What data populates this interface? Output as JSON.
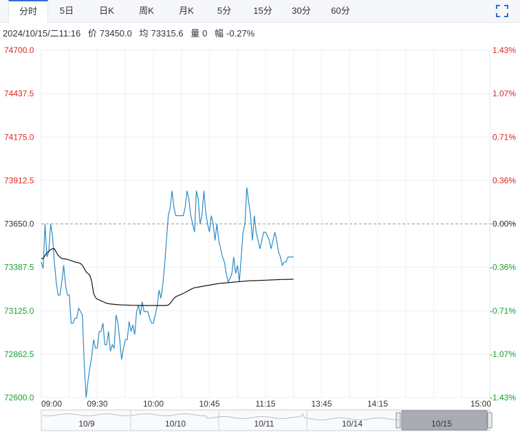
{
  "tabs": [
    "分时",
    "5日",
    "日K",
    "周K",
    "月K",
    "5分",
    "15分",
    "30分",
    "60分"
  ],
  "active_tab": 0,
  "info": {
    "datetime": "2024/10/15/二11:16",
    "price_label": "价",
    "price": "73450.0",
    "avg_label": "均",
    "avg": "73315.6",
    "vol_label": "量",
    "vol": "0",
    "range_label": "幅",
    "range": "-0.27%"
  },
  "colors": {
    "up": "#e0261c",
    "down": "#1a9e2c",
    "price_line": "#2b8ac6",
    "avg_line": "#111111",
    "grid": "#eceff3"
  },
  "chart_data": {
    "type": "line",
    "ylim": [
      72600.0,
      74700.0
    ],
    "prev_close": 73650.0,
    "y_ticks_left": [
      "74700.0",
      "74437.5",
      "74175.0",
      "73912.5",
      "73650.0",
      "73387.5",
      "73125.0",
      "72862.5",
      "72600.0"
    ],
    "y_ticks_right": [
      "1.43%",
      "1.07%",
      "0.71%",
      "0.36%",
      "0.00%",
      "-0.36%",
      "-0.71%",
      "-1.07%",
      "-1.43%"
    ],
    "x_ticks": [
      "09:00",
      "09:30",
      "10:00",
      "10:45",
      "11:15",
      "13:45",
      "14:15",
      "15:00"
    ],
    "total_minutes": 240,
    "series": [
      {
        "values": [
          73420,
          73380,
          73650,
          73450,
          73480,
          73650,
          73580,
          73420,
          73300,
          73220,
          73220,
          73300,
          73400,
          73280,
          73220,
          73220,
          73050,
          73050,
          73080,
          73080,
          73140,
          73120,
          73100,
          72800,
          72600,
          72700,
          72780,
          72850,
          72950,
          72900,
          72900,
          73000,
          73000,
          73050,
          72920,
          72920,
          73000,
          72880,
          72920,
          72900,
          73100,
          73050,
          72950,
          72830,
          72900,
          72950,
          72950,
          73060,
          73000,
          73040,
          72980,
          73120,
          73160,
          73100,
          73180,
          73120,
          73120,
          73120,
          73080,
          73050,
          73050,
          73100,
          73150,
          73250,
          73200,
          73280,
          73400,
          73550,
          73700,
          73750,
          73850,
          73750,
          73700,
          73700,
          73700,
          73700,
          73700,
          73750,
          73850,
          73800,
          73700,
          73650,
          73600,
          73850,
          73800,
          73650,
          73700,
          73850,
          73720,
          73650,
          73600,
          73700,
          73650,
          73550,
          73650,
          73550,
          73500,
          73450,
          73420,
          73350,
          73300,
          73320,
          73350,
          73450,
          73350,
          73400,
          73300,
          73450,
          73600,
          73650,
          73870,
          73780,
          73700,
          73550,
          73700,
          73600,
          73550,
          73500,
          73550,
          73600,
          73600,
          73580,
          73550,
          73500,
          73550,
          73600,
          73550,
          73480,
          73450,
          73400,
          73420,
          73420,
          73450,
          73450,
          73450,
          73450
        ],
        "avg_values": [
          73442,
          73440,
          73460,
          73475,
          73485,
          73495,
          73500,
          73500,
          73480,
          73460,
          73450,
          73440,
          73440,
          73438,
          73435,
          73432,
          73428,
          73424,
          73420,
          73417,
          73415,
          73410,
          73400,
          73380,
          73360,
          73350,
          73340,
          73300,
          73230,
          73205,
          73195,
          73190,
          73185,
          73180,
          73175,
          73170,
          73168,
          73166,
          73165,
          73164,
          73163,
          73162,
          73161,
          73160,
          73160,
          73160,
          73159,
          73159,
          73158,
          73158,
          73158,
          73158,
          73157,
          73157,
          73157,
          73157,
          73157,
          73157,
          73157,
          73157,
          73157,
          73157,
          73157,
          73157,
          73157,
          73157,
          73157,
          73157,
          73160,
          73170,
          73185,
          73200,
          73210,
          73215,
          73220,
          73225,
          73230,
          73236,
          73242,
          73248,
          73254,
          73260,
          73264,
          73266,
          73268,
          73270,
          73272,
          73274,
          73276,
          73278,
          73280,
          73282,
          73284,
          73286,
          73288,
          73290,
          73291,
          73292,
          73293,
          73294,
          73295,
          73296,
          73297,
          73298,
          73299,
          73300,
          73301,
          73302,
          73303,
          73304,
          73305,
          73306,
          73307,
          73307,
          73307,
          73307,
          73308,
          73308,
          73309,
          73309,
          73310,
          73310,
          73311,
          73311,
          73312,
          73312,
          73313,
          73313,
          73314,
          73314,
          73314,
          73315,
          73315,
          73315,
          73315,
          73316
        ]
      }
    ]
  },
  "navigator": {
    "labels": [
      "10/9",
      "10/10",
      "10/11",
      "10/14",
      "10/15"
    ]
  }
}
